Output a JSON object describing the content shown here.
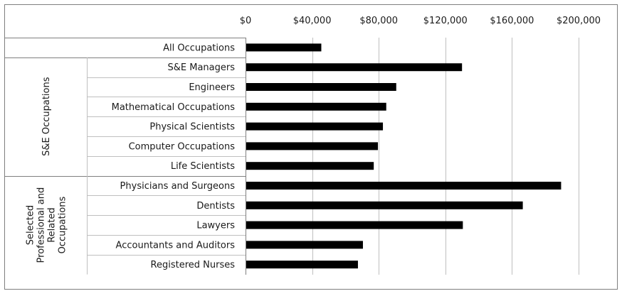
{
  "chart_data": {
    "type": "bar",
    "orientation": "horizontal",
    "title": "",
    "xlabel": "",
    "ylabel": "",
    "xlim": [
      0,
      200000
    ],
    "x_ticks": [
      0,
      40000,
      80000,
      120000,
      160000,
      200000
    ],
    "x_tick_labels": [
      "$0",
      "$40,000",
      "$80,000",
      "$120,000",
      "$160,000",
      "$200,000"
    ],
    "grid": "vertical",
    "legend": "none",
    "bar_color": "#000000",
    "categories": [
      "All Occupations",
      "S&E Managers",
      "Engineers",
      "Mathematical Occupations",
      "Physical Scientists",
      "Computer Occupations",
      "Life Scientists",
      "Physicians and Surgeons",
      "Dentists",
      "Lawyers",
      "Accountants and Auditors",
      "Registered Nurses"
    ],
    "values": [
      45500,
      130000,
      90500,
      84500,
      82500,
      79500,
      77000,
      189500,
      166500,
      130500,
      70500,
      67500
    ],
    "groups": [
      {
        "label": "",
        "lines": [],
        "categories": [
          "All Occupations"
        ]
      },
      {
        "label": "S&E Occupations",
        "lines": [
          "S&E Occupations"
        ],
        "categories": [
          "S&E Managers",
          "Engineers",
          "Mathematical Occupations",
          "Physical Scientists",
          "Computer Occupations",
          "Life Scientists"
        ]
      },
      {
        "label": "Selected Professional and Related Occupations",
        "lines": [
          "Selected",
          "Professional and",
          "Related",
          "Occupations"
        ],
        "categories": [
          "Physicians and Surgeons",
          "Dentists",
          "Lawyers",
          "Accountants and Auditors",
          "Registered Nurses"
        ]
      }
    ]
  }
}
